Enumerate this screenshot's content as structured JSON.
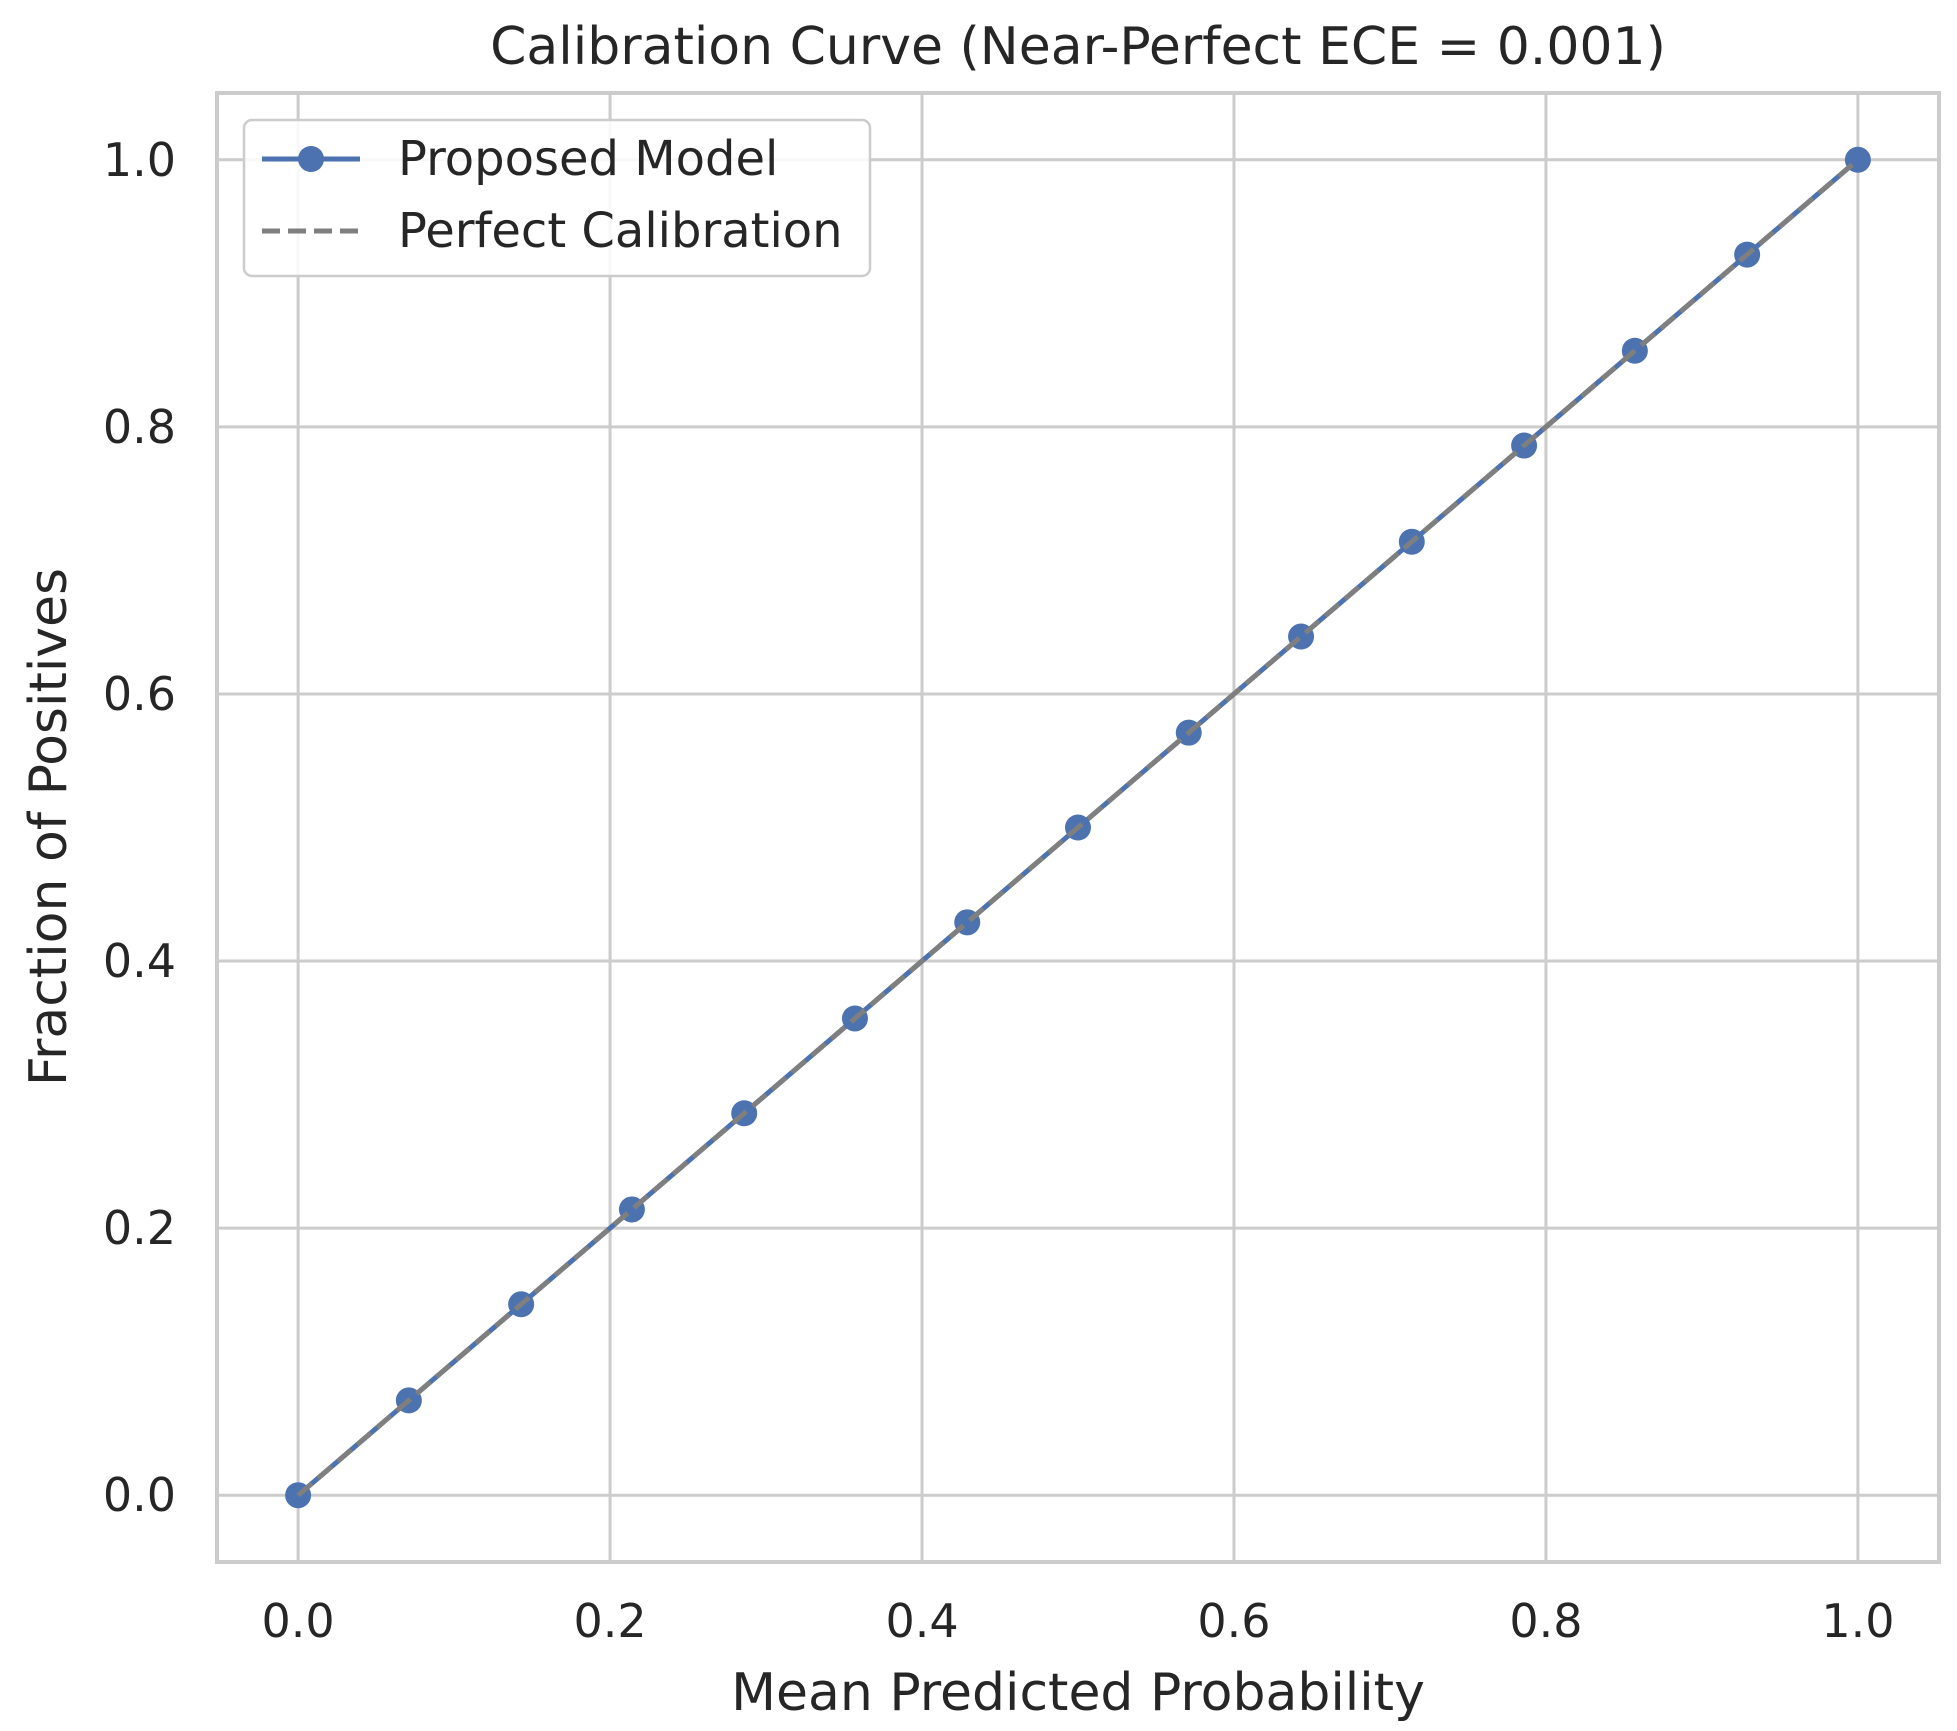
{
  "chart_data": {
    "type": "line",
    "title": "Calibration Curve (Near-Perfect ECE = 0.001)",
    "xlabel": "Mean Predicted Probability",
    "ylabel": "Fraction of Positives",
    "xlim": [
      -0.052,
      1.052
    ],
    "ylim": [
      -0.05,
      1.05
    ],
    "xticks": [
      0.0,
      0.2,
      0.4,
      0.6,
      0.8,
      1.0
    ],
    "xtick_labels": [
      "0.0",
      "0.2",
      "0.4",
      "0.6",
      "0.8",
      "1.0"
    ],
    "yticks": [
      0.0,
      0.2,
      0.4,
      0.6,
      0.8,
      1.0
    ],
    "ytick_labels": [
      "0.0",
      "0.2",
      "0.4",
      "0.6",
      "0.8",
      "1.0"
    ],
    "grid": true,
    "legend_position": "top-left",
    "series": [
      {
        "name": "Proposed Model",
        "color": "#4c72b0",
        "style": "solid",
        "marker": "circle",
        "x": [
          0.0,
          0.071,
          0.143,
          0.214,
          0.286,
          0.357,
          0.429,
          0.5,
          0.571,
          0.643,
          0.714,
          0.786,
          0.857,
          0.929,
          1.0
        ],
        "y": [
          0.0,
          0.071,
          0.143,
          0.214,
          0.286,
          0.357,
          0.429,
          0.5,
          0.571,
          0.643,
          0.714,
          0.786,
          0.857,
          0.929,
          1.0
        ]
      },
      {
        "name": "Perfect Calibration",
        "color": "#7f7f7f",
        "style": "dashed",
        "marker": "none",
        "x": [
          0.0,
          1.0
        ],
        "y": [
          0.0,
          1.0
        ]
      }
    ]
  }
}
